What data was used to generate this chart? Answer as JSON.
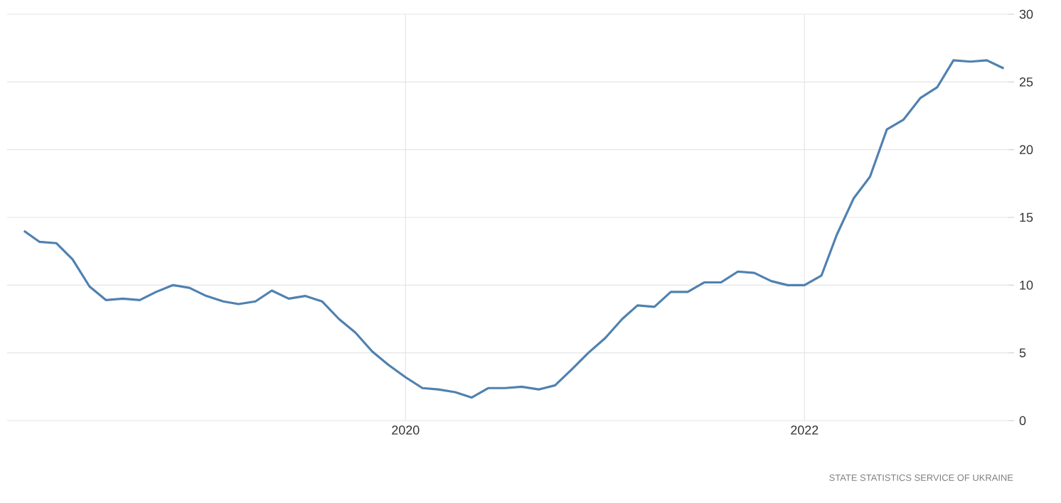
{
  "chart_data": {
    "type": "line",
    "x": [
      "2018-02",
      "2018-03",
      "2018-04",
      "2018-05",
      "2018-06",
      "2018-07",
      "2018-08",
      "2018-09",
      "2018-10",
      "2018-11",
      "2018-12",
      "2019-01",
      "2019-02",
      "2019-03",
      "2019-04",
      "2019-05",
      "2019-06",
      "2019-07",
      "2019-08",
      "2019-09",
      "2019-10",
      "2019-11",
      "2019-12",
      "2020-01",
      "2020-02",
      "2020-03",
      "2020-04",
      "2020-05",
      "2020-06",
      "2020-07",
      "2020-08",
      "2020-09",
      "2020-10",
      "2020-11",
      "2020-12",
      "2021-01",
      "2021-02",
      "2021-03",
      "2021-04",
      "2021-05",
      "2021-06",
      "2021-07",
      "2021-08",
      "2021-09",
      "2021-10",
      "2021-11",
      "2021-12",
      "2022-01",
      "2022-02",
      "2022-03",
      "2022-04",
      "2022-05",
      "2022-06",
      "2022-07",
      "2022-08",
      "2022-09",
      "2022-10",
      "2022-11",
      "2022-12",
      "2023-01"
    ],
    "series": [
      {
        "color": "#4f81b0",
        "values": [
          14.0,
          13.2,
          13.1,
          11.9,
          9.9,
          8.9,
          9.0,
          8.9,
          9.5,
          10.0,
          9.8,
          9.2,
          8.8,
          8.6,
          8.8,
          9.6,
          9.0,
          9.2,
          8.8,
          7.5,
          6.5,
          5.1,
          4.1,
          3.2,
          2.4,
          2.3,
          2.1,
          1.7,
          2.4,
          2.4,
          2.5,
          2.3,
          2.6,
          3.8,
          5.0,
          6.1,
          7.5,
          8.5,
          8.4,
          9.5,
          9.5,
          10.2,
          10.2,
          11.0,
          10.9,
          10.3,
          10.0,
          10.0,
          10.7,
          13.7,
          16.4,
          18.0,
          21.5,
          22.2,
          23.8,
          24.6,
          26.6,
          26.5,
          26.6,
          26.0
        ]
      }
    ],
    "xlim": [
      "2018-01-01",
      "2023-01-20"
    ],
    "xticks": [
      "2020",
      "2022"
    ],
    "ylim": [
      0,
      30
    ],
    "yticks": [
      0,
      5,
      10,
      15,
      20,
      25,
      30
    ],
    "grid": true,
    "annotations": [
      "STATE STATISTICS SERVICE OF UKRAINE"
    ]
  }
}
